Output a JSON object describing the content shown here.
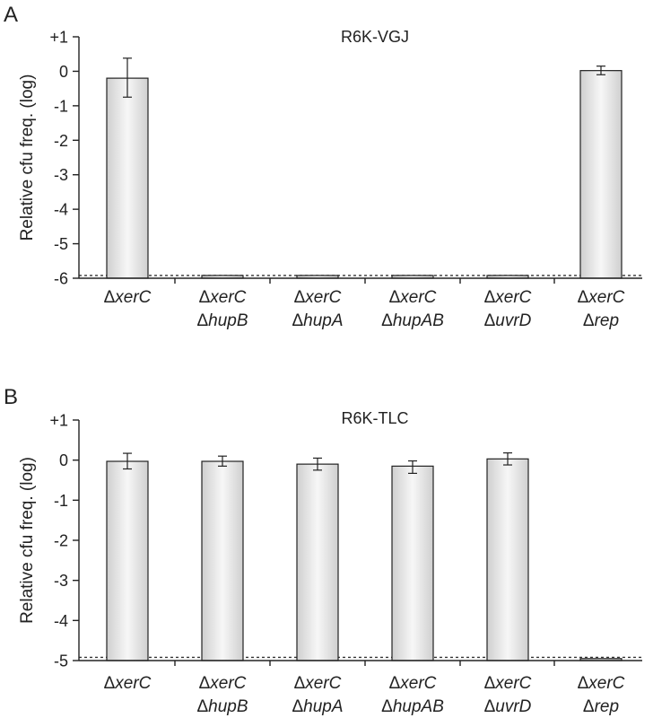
{
  "chart_data": [
    {
      "panel_label": "A",
      "type": "bar",
      "title": "R6K-VGJ",
      "ylabel": "Relative cfu freq. (log)",
      "ylim": [
        -6,
        1
      ],
      "yticks": [
        "+1",
        "0",
        "-1",
        "-2",
        "-3",
        "-4",
        "-5",
        "-6"
      ],
      "detection_limit": -5.92,
      "categories": [
        {
          "line1": "ΔxerC",
          "line2": ""
        },
        {
          "line1": "ΔxerC",
          "line2": "ΔhupB"
        },
        {
          "line1": "ΔxerC",
          "line2": "ΔhupA"
        },
        {
          "line1": "ΔxerC",
          "line2": "ΔhupAB"
        },
        {
          "line1": "ΔxerC",
          "line2": "ΔuvrD"
        },
        {
          "line1": "ΔxerC",
          "line2": "Δrep"
        }
      ],
      "values": [
        -0.2,
        -5.92,
        -5.92,
        -5.92,
        -5.92,
        0.02
      ],
      "error_low": [
        -0.75,
        null,
        null,
        null,
        null,
        -0.1
      ],
      "error_high": [
        0.38,
        null,
        null,
        null,
        null,
        0.15
      ]
    },
    {
      "panel_label": "B",
      "type": "bar",
      "title": "R6K-TLC",
      "ylabel": "Relative cfu freq. (log)",
      "ylim": [
        -5,
        1
      ],
      "yticks": [
        "+1",
        "0",
        "-1",
        "-2",
        "-3",
        "-4",
        "-5"
      ],
      "detection_limit": -4.92,
      "categories": [
        {
          "line1": "ΔxerC",
          "line2": ""
        },
        {
          "line1": "ΔxerC",
          "line2": "ΔhupB"
        },
        {
          "line1": "ΔxerC",
          "line2": "ΔhupA"
        },
        {
          "line1": "ΔxerC",
          "line2": "ΔhupAB"
        },
        {
          "line1": "ΔxerC",
          "line2": "ΔuvrD"
        },
        {
          "line1": "ΔxerC",
          "line2": "Δrep"
        }
      ],
      "values": [
        -0.03,
        -0.03,
        -0.1,
        -0.15,
        0.03,
        -4.95
      ],
      "error_low": [
        -0.22,
        -0.15,
        -0.25,
        -0.33,
        -0.12,
        null
      ],
      "error_high": [
        0.17,
        0.1,
        0.05,
        -0.02,
        0.18,
        null
      ]
    }
  ]
}
